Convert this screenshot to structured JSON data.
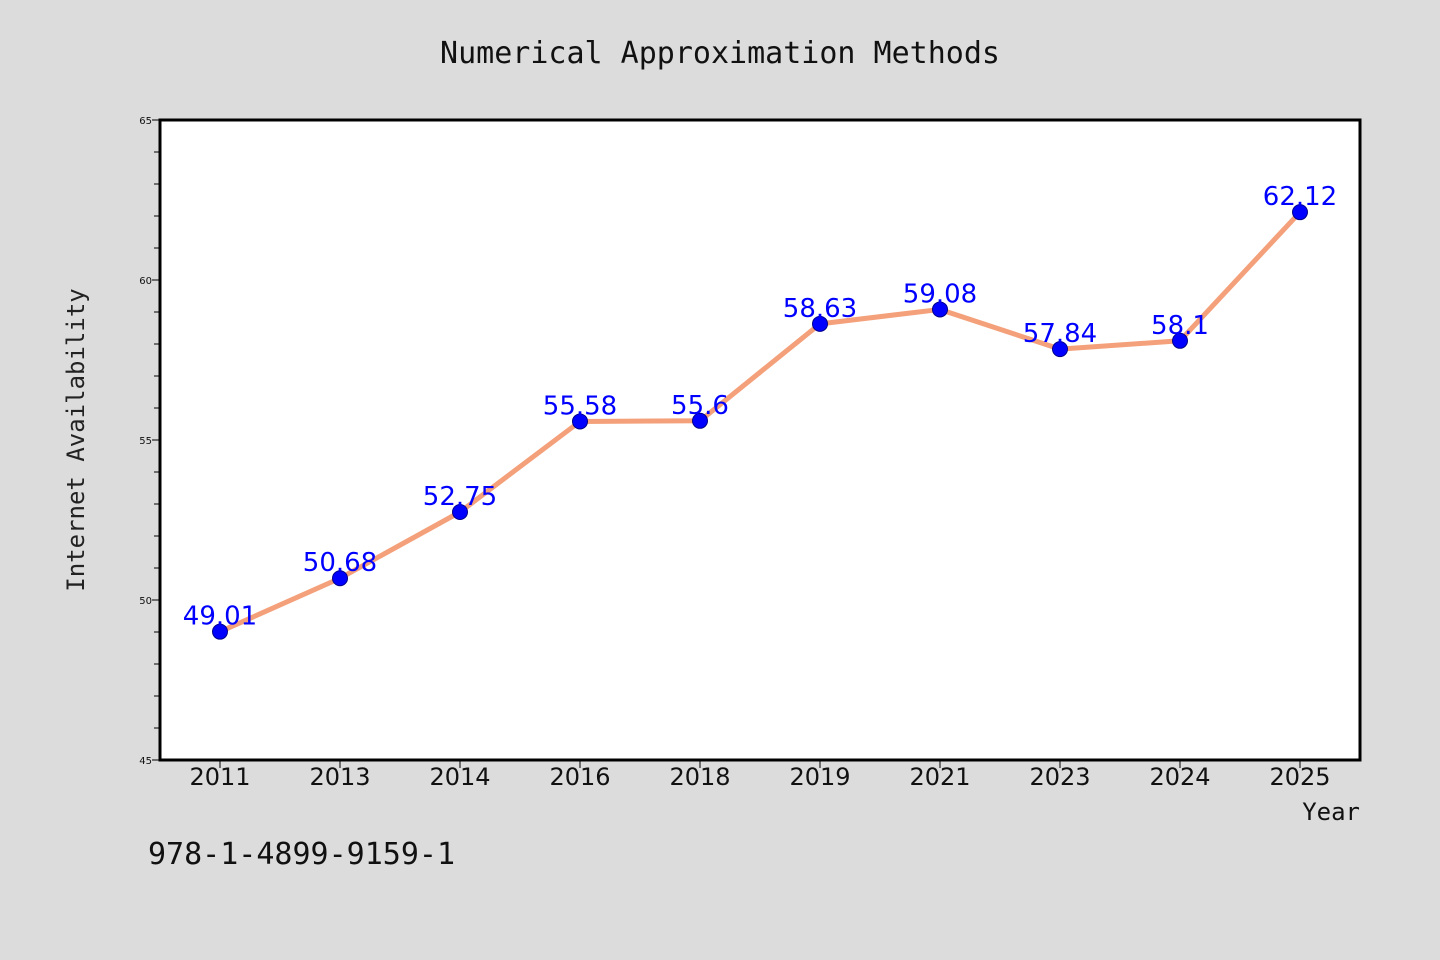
{
  "chart_data": {
    "type": "line",
    "title": "Numerical Approximation Methods",
    "xlabel": "Year",
    "ylabel": "Internet Availability",
    "categories": [
      "2011",
      "2013",
      "2014",
      "2016",
      "2018",
      "2019",
      "2021",
      "2023",
      "2024",
      "2025"
    ],
    "series": [
      {
        "values": [
          49.01,
          50.68,
          52.75,
          55.58,
          55.6,
          58.63,
          59.08,
          57.84,
          58.1,
          62.12
        ],
        "data_labels": [
          "49.01",
          "50.68",
          "52.75",
          "55.58",
          "55.6",
          "58.63",
          "59.08",
          "57.84",
          "58.1",
          "62.12"
        ]
      }
    ],
    "ylim": [
      45,
      65
    ],
    "yticks": [
      "45",
      "50",
      "55",
      "60",
      "65"
    ],
    "grid": false,
    "line_color": "#f4a07a",
    "marker_color": "#0000ff",
    "label_color": "#0000ff",
    "background_color": "#dcdcdc",
    "plot_background_color": "#ffffff"
  },
  "annotation": "978-1-4899-9159-1"
}
